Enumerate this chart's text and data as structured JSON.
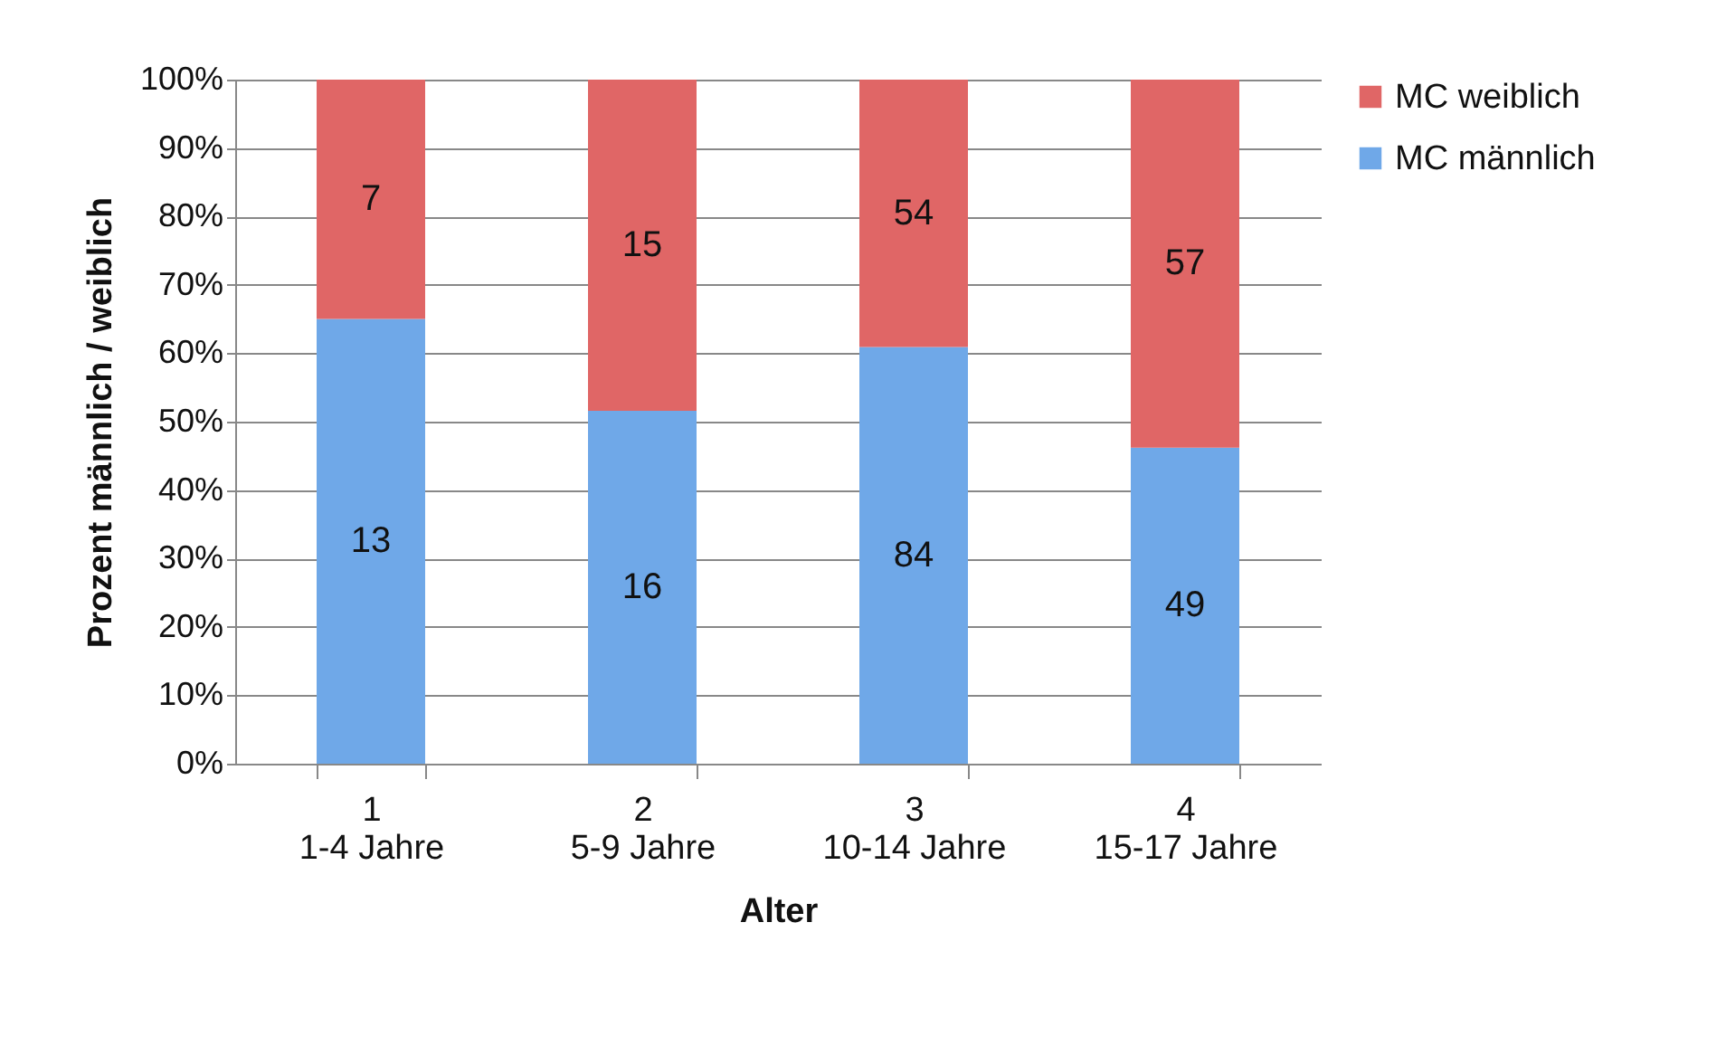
{
  "chart_data": {
    "type": "bar",
    "stacked": true,
    "xlabel": "Alter",
    "ylabel": "Prozent männlich / weiblich",
    "categories": [
      "1\n1-4 Jahre",
      "2\n5-9 Jahre",
      "3\n10-14 Jahre",
      "4\n15-17 Jahre"
    ],
    "series": [
      {
        "name": "MC männlich",
        "color": "#6fa8e8",
        "values": [
          65,
          51.6,
          60.9,
          46.2
        ]
      },
      {
        "name": "MC weiblich",
        "color": "#e06666",
        "values": [
          35,
          48.4,
          39.1,
          53.8
        ]
      }
    ],
    "annotations": [
      "13",
      "16",
      "84",
      "49",
      "7",
      "15",
      "54",
      "57"
    ],
    "ylim": [
      0,
      100
    ],
    "yticks": [
      {
        "value": 0,
        "label": "0%"
      },
      {
        "value": 10,
        "label": "10%"
      },
      {
        "value": 20,
        "label": "20%"
      },
      {
        "value": 30,
        "label": "30%"
      },
      {
        "value": 40,
        "label": "40%"
      },
      {
        "value": 50,
        "label": "50%"
      },
      {
        "value": 60,
        "label": "60%"
      },
      {
        "value": 70,
        "label": "70%"
      },
      {
        "value": 80,
        "label": "80%"
      },
      {
        "value": 90,
        "label": "90%"
      },
      {
        "value": 100,
        "label": "100%"
      }
    ],
    "grid": "y",
    "legend": "right"
  }
}
